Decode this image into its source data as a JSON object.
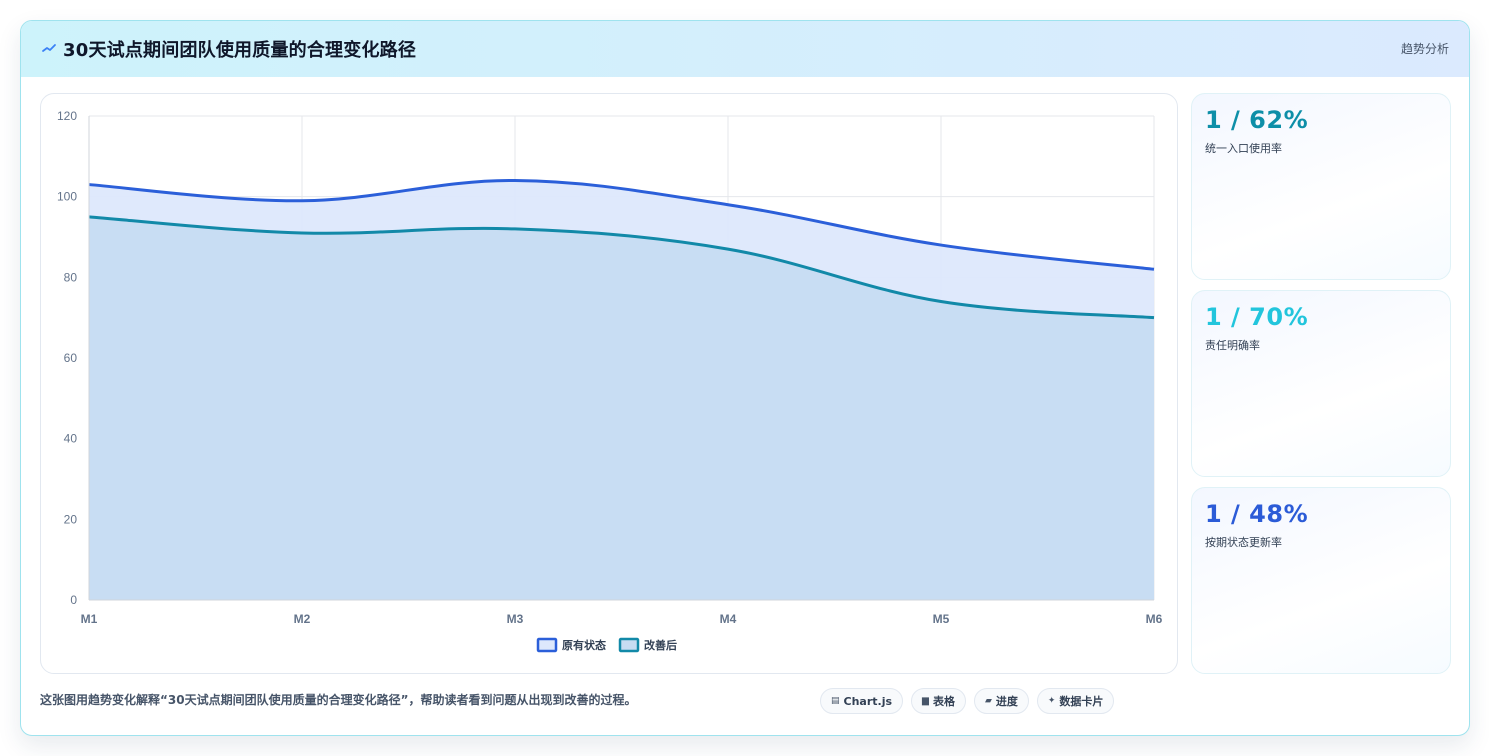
{
  "header": {
    "title": "30天试点期间团队使用质量的合理变化路径",
    "tag": "趋势分析",
    "icon": "trend-icon"
  },
  "kpis": [
    {
      "value": "1 / 62%",
      "label": "统一入口使用率",
      "color": "#0e8fa8"
    },
    {
      "value": "1 / 70%",
      "label": "责任明确率",
      "color": "#22c5dc"
    },
    {
      "value": "1 / 48%",
      "label": "按期状态更新率",
      "color": "#2b5bd7"
    }
  ],
  "footer": {
    "text": "这张图用趋势变化解释“30天试点期间团队使用质量的合理变化路径”，帮助读者看到问题从出现到改善的过程。",
    "chips": [
      {
        "icon": "▤",
        "label": "Chart.js"
      },
      {
        "icon": "▆",
        "label": "表格"
      },
      {
        "icon": "▰",
        "label": "进度"
      },
      {
        "icon": "✦",
        "label": "数据卡片"
      }
    ]
  },
  "chart_data": {
    "type": "area",
    "x": [
      "M1",
      "M2",
      "M3",
      "M4",
      "M5",
      "M6"
    ],
    "ylim": [
      0,
      120
    ],
    "yticks": [
      0,
      20,
      40,
      60,
      80,
      100,
      120
    ],
    "grid": true,
    "legend_position": "bottom",
    "series": [
      {
        "name": "原有状态",
        "values": [
          103,
          99,
          104,
          98,
          88,
          82
        ],
        "color": "#2b5fd9",
        "fill": "#dde8fc"
      },
      {
        "name": "改善后",
        "values": [
          95,
          91,
          92,
          87,
          74,
          70
        ],
        "color": "#1289a8",
        "fill": "#c6dcf2"
      }
    ]
  }
}
